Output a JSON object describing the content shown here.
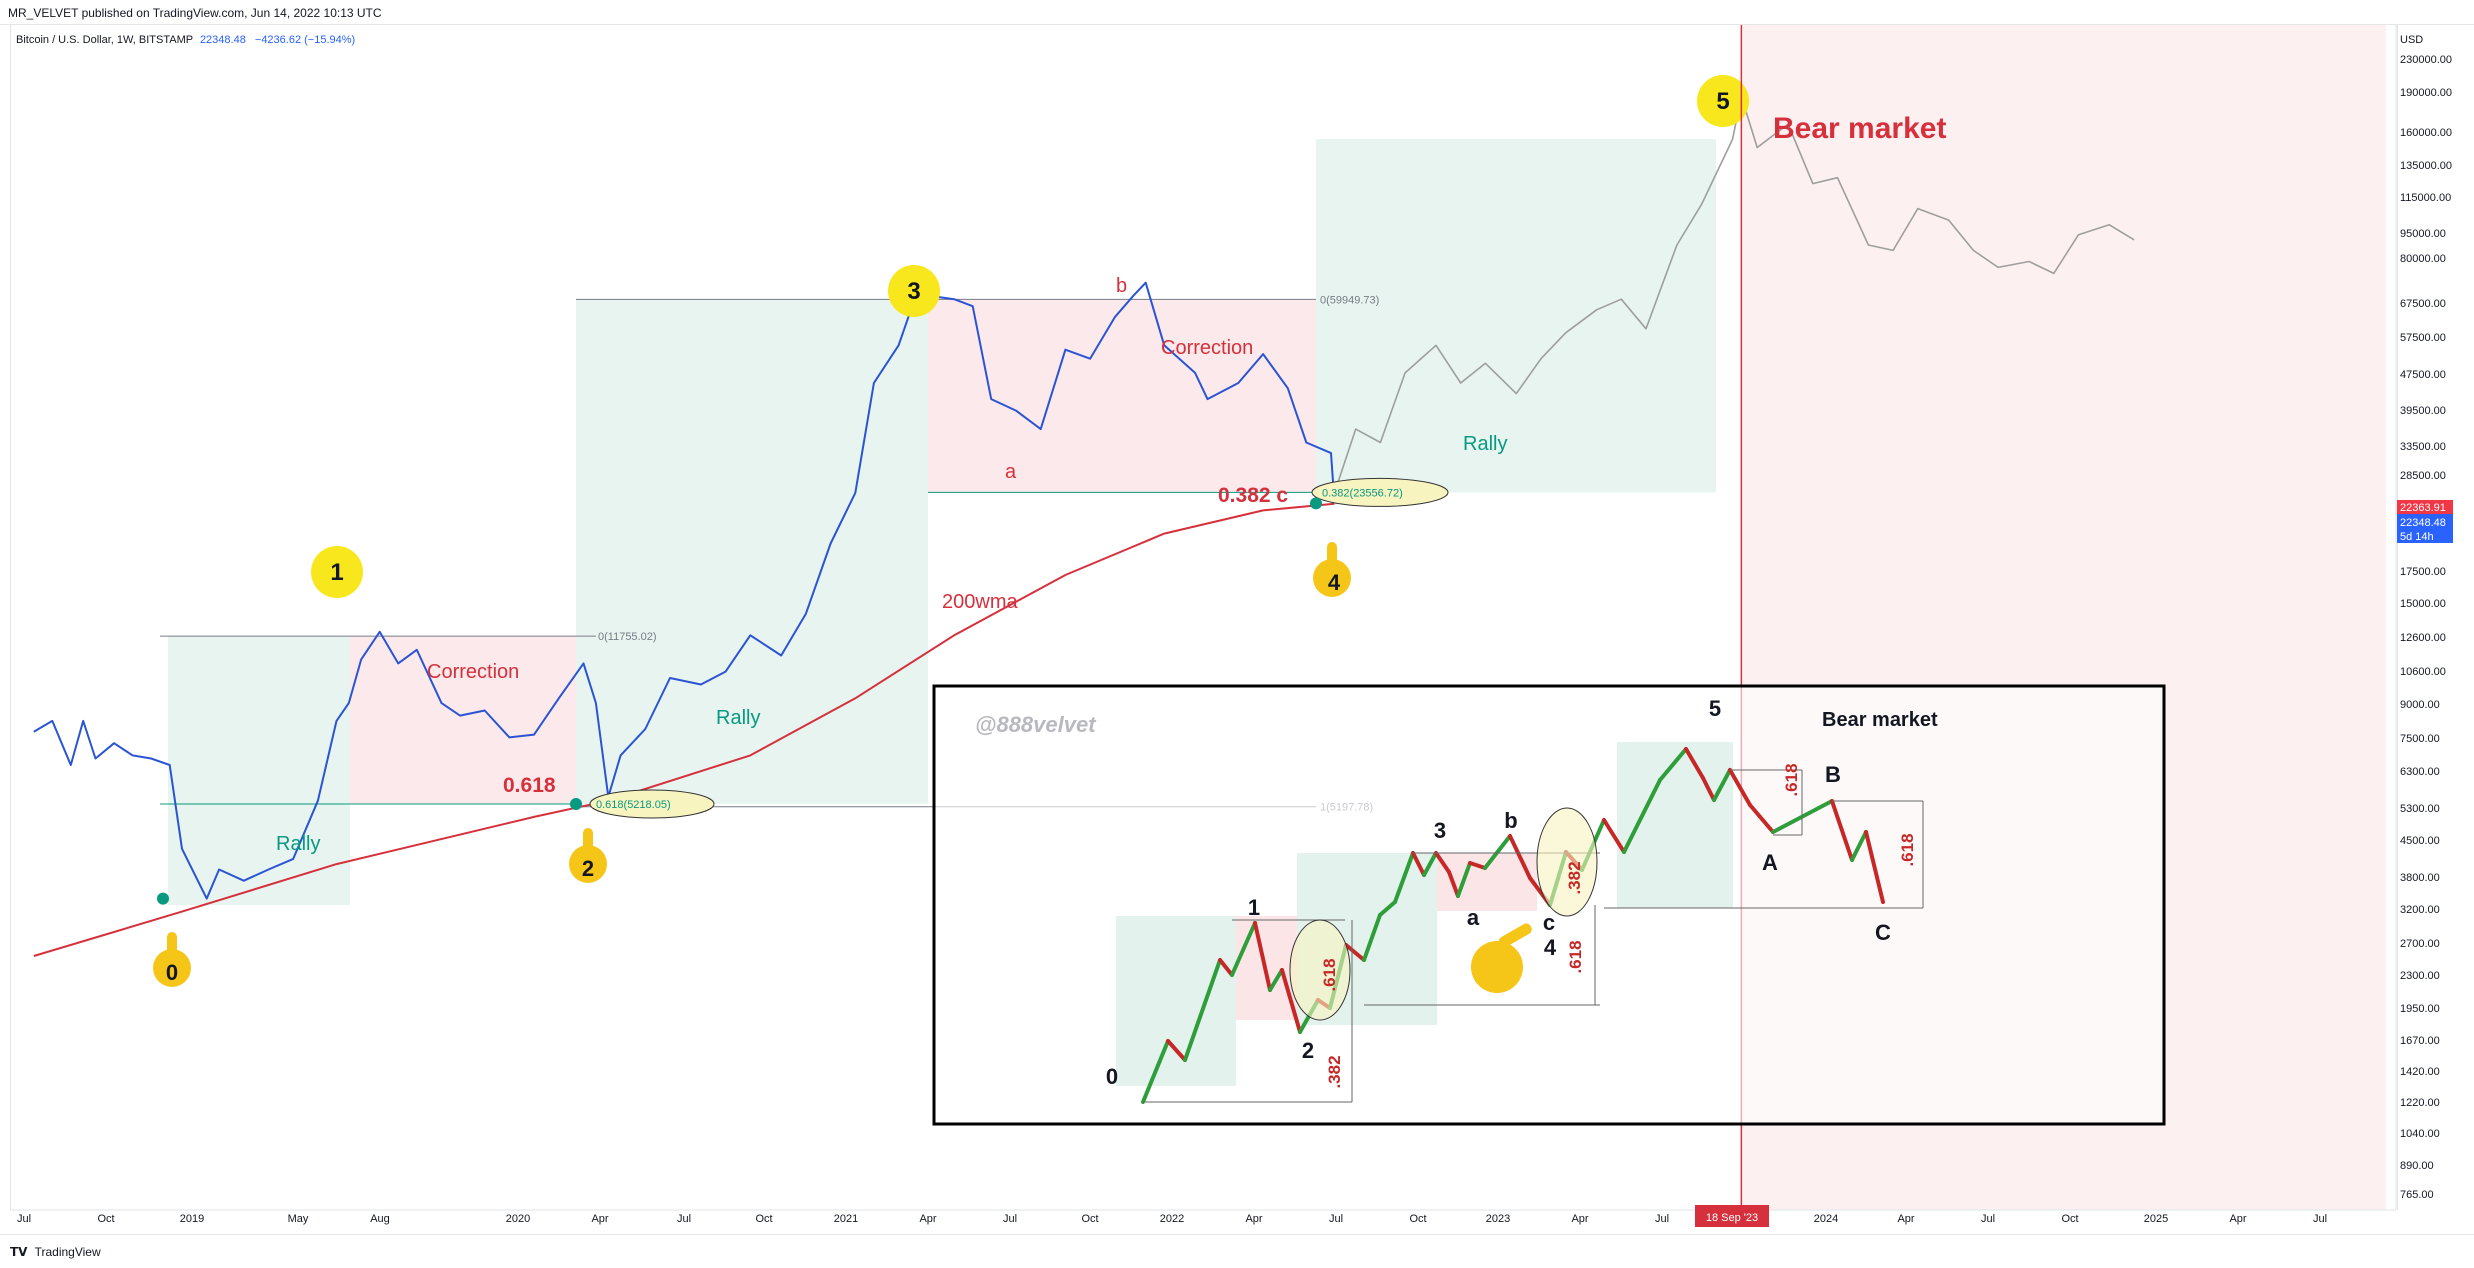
{
  "header": {
    "published": "MR_VELVET published on TradingView.com, Jun 14, 2022 10:13 UTC",
    "symbol": "Bitcoin / U.S. Dollar, 1W, BITSTAMP",
    "price": "22348.48",
    "change": "−4236.62 (−15.94%)"
  },
  "footer": {
    "logo": "TradingView"
  },
  "colors": {
    "price_line": "#2b54d4",
    "wma": "#d6303c",
    "projection": "#9e9e9e",
    "rally_box": "#e3f2ec",
    "correction_box": "#fbe5e7",
    "bear_zone": "#fdf0f0",
    "wave_label": "#f8e71c"
  },
  "chart_data": {
    "type": "line",
    "title": "",
    "ylabel": "USD",
    "y_scale": "log",
    "ylim": [
      765,
      230000
    ],
    "y_ticks": [
      "230000.00",
      "190000.00",
      "160000.00",
      "135000.00",
      "115000.00",
      "95000.00",
      "80000.00",
      "67500.00",
      "57500.00",
      "47500.00",
      "39500.00",
      "33500.00",
      "28500.00",
      "17500.00",
      "15000.00",
      "12600.00",
      "10600.00",
      "9000.00",
      "7500.00",
      "6300.00",
      "5300.00",
      "4500.00",
      "3800.00",
      "3200.00",
      "2700.00",
      "2300.00",
      "1950.00",
      "1670.00",
      "1420.00",
      "1220.00",
      "1040.00",
      "890.00",
      "765.00"
    ],
    "price_labels": [
      {
        "value": "22363.91",
        "color": "#f23645"
      },
      {
        "value": "22348.48",
        "color": "#2962ff"
      },
      {
        "value": "5d 14h",
        "color": "#2962ff"
      }
    ],
    "x_ticks": [
      "Jul",
      "Oct",
      "2019",
      "May",
      "Aug",
      "2020",
      "Apr",
      "Jul",
      "Oct",
      "2021",
      "Apr",
      "Jul",
      "Oct",
      "2022",
      "Apr",
      "Jul",
      "Oct",
      "2023",
      "Apr",
      "Jul",
      "18 Sep '23",
      "2024",
      "Apr",
      "Jul",
      "Oct",
      "2025",
      "Apr",
      "Jul"
    ],
    "series": [
      {
        "name": "Bitcoin / U.S. Dollar",
        "x": [
          "2018-06-01",
          "2018-06-22",
          "2018-07-13",
          "2018-07-27",
          "2018-08-10",
          "2018-08-31",
          "2018-09-21",
          "2018-10-12",
          "2018-11-02",
          "2018-11-16",
          "2018-12-14",
          "2018-12-28",
          "2019-01-25",
          "2019-02-22",
          "2019-03-22",
          "2019-04-19",
          "2019-05-10",
          "2019-05-24",
          "2019-06-07",
          "2019-06-28",
          "2019-07-19",
          "2019-08-09",
          "2019-09-06",
          "2019-09-27",
          "2019-10-25",
          "2019-11-22",
          "2019-12-20",
          "2020-01-17",
          "2020-02-14",
          "2020-02-28",
          "2020-03-13",
          "2020-03-27",
          "2020-04-24",
          "2020-05-22",
          "2020-06-26",
          "2020-07-24",
          "2020-08-21",
          "2020-09-25",
          "2020-10-23",
          "2020-11-20",
          "2020-12-18",
          "2021-01-08",
          "2021-02-05",
          "2021-02-19",
          "2021-03-12",
          "2021-04-09",
          "2021-04-30",
          "2021-05-21",
          "2021-06-18",
          "2021-07-16",
          "2021-08-13",
          "2021-09-10",
          "2021-10-08",
          "2021-10-29",
          "2021-11-12",
          "2021-12-03",
          "2022-01-07",
          "2022-01-21",
          "2022-02-25",
          "2022-03-25",
          "2022-04-22",
          "2022-05-13",
          "2022-06-10",
          "2022-06-14"
        ],
        "y": [
          7400,
          7800,
          6300,
          7800,
          6500,
          7000,
          6600,
          6500,
          6300,
          4200,
          3300,
          3800,
          3600,
          3800,
          4000,
          5300,
          7800,
          8500,
          10500,
          12000,
          10300,
          11000,
          8500,
          8000,
          8200,
          7200,
          7300,
          8700,
          10300,
          8500,
          5400,
          6600,
          7500,
          9600,
          9300,
          9900,
          11800,
          10700,
          13100,
          18400,
          23500,
          40000,
          48000,
          57000,
          61000,
          60000,
          58000,
          37000,
          35000,
          32000,
          47000,
          45000,
          55000,
          61000,
          65000,
          48000,
          42000,
          37000,
          40000,
          46000,
          39000,
          30000,
          28500,
          22348
        ]
      },
      {
        "name": "200wma",
        "x": [
          "2018-06-01",
          "2018-11-16",
          "2019-05-10",
          "2019-12-20",
          "2020-03-13",
          "2020-08-21",
          "2020-12-18",
          "2021-04-09",
          "2021-08-13",
          "2021-12-03",
          "2022-03-25",
          "2022-06-14"
        ],
        "y": [
          2500,
          3100,
          3900,
          4900,
          5300,
          6600,
          8700,
          11800,
          15800,
          19300,
          21600,
          22300
        ]
      },
      {
        "name": "projection",
        "x": [
          "2022-06-14",
          "2022-07-08",
          "2022-08-05",
          "2022-09-02",
          "2022-10-07",
          "2022-11-04",
          "2022-12-02",
          "2023-01-06",
          "2023-02-03",
          "2023-03-03",
          "2023-04-07",
          "2023-05-05",
          "2023-06-02",
          "2023-07-07",
          "2023-08-04",
          "2023-09-08",
          "2023-09-18",
          "2023-10-06",
          "2023-11-10",
          "2023-12-08",
          "2024-01-05",
          "2024-02-09",
          "2024-03-08",
          "2024-04-05",
          "2024-05-10",
          "2024-06-07",
          "2024-07-05",
          "2024-08-09",
          "2024-09-06",
          "2024-10-04",
          "2024-11-08",
          "2024-12-06"
        ],
        "y": [
          23500,
          32000,
          30000,
          42000,
          48000,
          40000,
          44000,
          38000,
          45000,
          51000,
          57000,
          60000,
          52000,
          78000,
          95000,
          130000,
          160000,
          125000,
          140000,
          105000,
          108000,
          78000,
          76000,
          93000,
          88000,
          76000,
          70000,
          72000,
          68000,
          82000,
          86000,
          80000
        ]
      }
    ],
    "annotations": {
      "waves": [
        "0",
        "1",
        "2",
        "3",
        "4",
        "5"
      ],
      "labels": [
        "Rally",
        "Correction",
        "Rally",
        "Correction",
        "Rally",
        "Bear market",
        "200wma",
        "0.618",
        "0.382 c",
        "a",
        "b"
      ],
      "fib_levels": [
        "0(11755.02)",
        "0.618(5218.05)",
        "0(59949.73)",
        "1(5197.78)",
        "0.382(23556.72)"
      ]
    },
    "inset": {
      "watermark": "@888velvet",
      "title": "Bear market",
      "labels": [
        "0",
        "1",
        "2",
        "3",
        "a",
        "b",
        "c",
        "4",
        "5",
        "A",
        "B",
        "C"
      ],
      "ratios": [
        ".618",
        ".382",
        ".382",
        ".618",
        ".618",
        ".618"
      ]
    },
    "grid": false,
    "legend": "none"
  }
}
